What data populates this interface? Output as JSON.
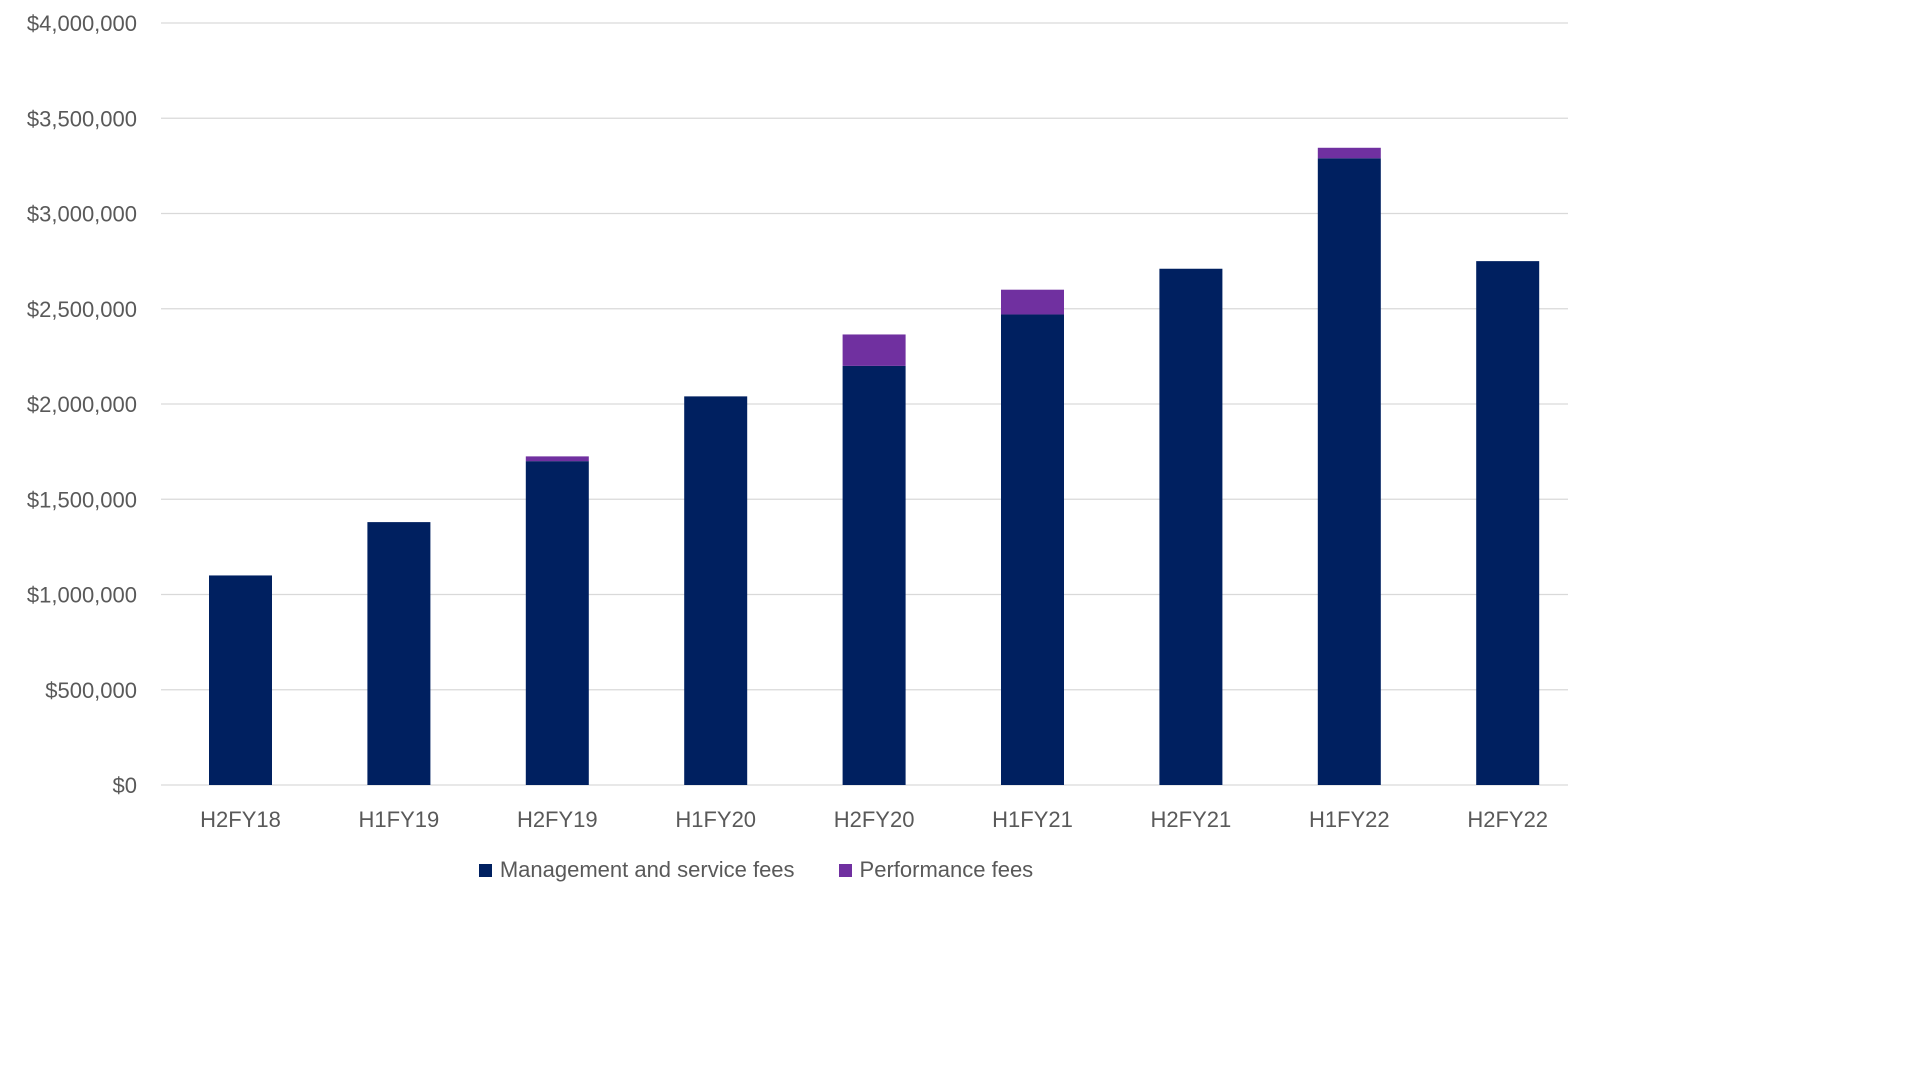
{
  "chart_data": {
    "type": "bar",
    "stacked": true,
    "title": "",
    "xlabel": "",
    "ylabel": "",
    "categories": [
      "H2FY18",
      "H1FY19",
      "H2FY19",
      "H1FY20",
      "H2FY20",
      "H1FY21",
      "H2FY21",
      "H1FY22",
      "H2FY22"
    ],
    "series": [
      {
        "name": "Management and service fees",
        "color": "#002060",
        "values": [
          1100000,
          1380000,
          1700000,
          2040000,
          2200000,
          2470000,
          2710000,
          3290000,
          2750000
        ]
      },
      {
        "name": "Performance fees",
        "color": "#7030A0",
        "values": [
          0,
          0,
          25000,
          0,
          165000,
          130000,
          0,
          55000,
          0
        ]
      }
    ],
    "ylim": [
      0,
      4000000
    ],
    "yticks": [
      0,
      500000,
      1000000,
      1500000,
      2000000,
      2500000,
      3000000,
      3500000,
      4000000
    ],
    "ytick_labels": [
      "$0",
      "$500,000",
      "$1,000,000",
      "$1,500,000",
      "$2,000,000",
      "$2,500,000",
      "$3,000,000",
      "$3,500,000",
      "$4,000,000"
    ],
    "grid": true,
    "legend_position": "bottom"
  }
}
